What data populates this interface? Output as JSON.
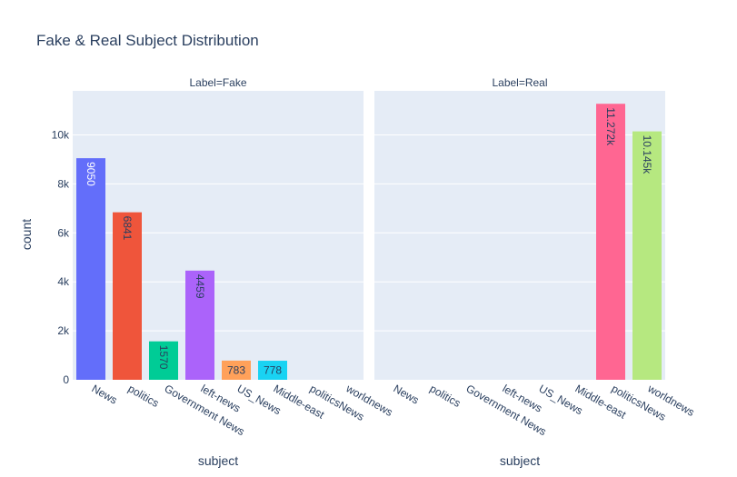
{
  "chart_data": {
    "type": "bar",
    "title": "Fake & Real Subject Distribution",
    "ylabel": "count",
    "xlabel": "subject",
    "ylim": [
      0,
      11800
    ],
    "y_ticks": [
      {
        "value": 0,
        "label": "0"
      },
      {
        "value": 2000,
        "label": "2k"
      },
      {
        "value": 4000,
        "label": "4k"
      },
      {
        "value": 6000,
        "label": "6k"
      },
      {
        "value": 8000,
        "label": "8k"
      },
      {
        "value": 10000,
        "label": "10k"
      }
    ],
    "categories": [
      "News",
      "politics",
      "Government News",
      "left-news",
      "US_News",
      "Middle-east",
      "politicsNews",
      "worldnews"
    ],
    "colors": [
      "#636efa",
      "#EF553B",
      "#00cc96",
      "#ab63fa",
      "#FFA15A",
      "#19d3f3",
      "#FF6692",
      "#B6E880"
    ],
    "panels": [
      {
        "facet_title": "Label=Fake",
        "values": [
          9050,
          6841,
          1570,
          4459,
          783,
          778,
          null,
          null
        ],
        "labels": [
          "9050",
          "6841",
          "1570",
          "4459",
          "783",
          "778",
          "",
          ""
        ]
      },
      {
        "facet_title": "Label=Real",
        "values": [
          null,
          null,
          null,
          null,
          null,
          null,
          11272,
          10145
        ],
        "labels": [
          "",
          "",
          "",
          "",
          "",
          "",
          "11.272k",
          "10.145k"
        ]
      }
    ],
    "grid": true,
    "legend": "none"
  }
}
